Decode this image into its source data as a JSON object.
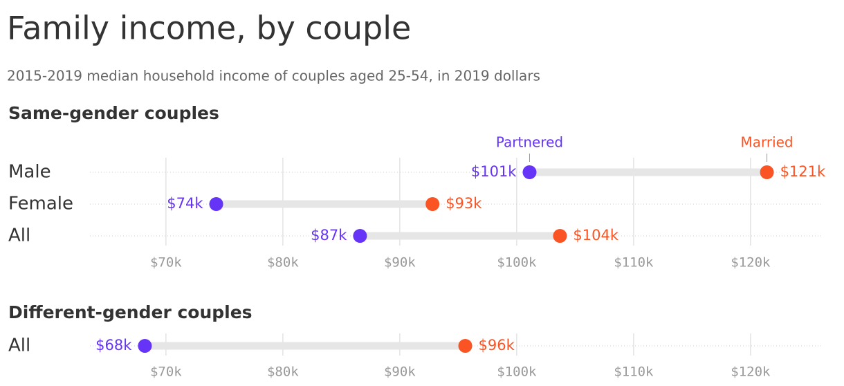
{
  "title": "Family income, by couple",
  "subtitle": "2015-2019 median household income of couples aged 25-54, in 2019 dollars",
  "chart_data": [
    {
      "type": "dumbbell",
      "title": "Same-gender couples",
      "categories": [
        "Male",
        "Female",
        "All"
      ],
      "series": [
        {
          "name": "Partnered",
          "color": "#6534f6",
          "values": [
            101.1,
            74.3,
            86.6
          ],
          "value_labels": [
            "$101k",
            "$74k",
            "$87k"
          ]
        },
        {
          "name": "Married",
          "color": "#fa5424",
          "values": [
            121.4,
            92.8,
            103.7
          ],
          "value_labels": [
            "$121k",
            "$93k",
            "$104k"
          ]
        }
      ],
      "xlim": [
        63.5,
        126.1
      ],
      "xticks": [
        {
          "value": 70,
          "label": "$70k"
        },
        {
          "value": 80,
          "label": "$80k"
        },
        {
          "value": 90,
          "label": "$90k"
        },
        {
          "value": 100,
          "label": "$100k"
        },
        {
          "value": 110,
          "label": "$110k"
        },
        {
          "value": 120,
          "label": "$120k"
        }
      ],
      "grid": true
    },
    {
      "type": "dumbbell",
      "title": "Different-gender couples",
      "categories": [
        "All"
      ],
      "series": [
        {
          "color": "#6534f6",
          "values": [
            68.2
          ],
          "value_labels": [
            "$68k"
          ]
        },
        {
          "color": "#fa5424",
          "values": [
            95.6
          ],
          "value_labels": [
            "$96k"
          ]
        }
      ],
      "xlim": [
        63.5,
        126.1
      ],
      "xticks": [
        {
          "value": 70,
          "label": "$70k"
        },
        {
          "value": 80,
          "label": "$80k"
        },
        {
          "value": 90,
          "label": "$90k"
        },
        {
          "value": 100,
          "label": "$100k"
        },
        {
          "value": 110,
          "label": "$110k"
        },
        {
          "value": 120,
          "label": "$120k"
        }
      ],
      "grid": true
    }
  ]
}
